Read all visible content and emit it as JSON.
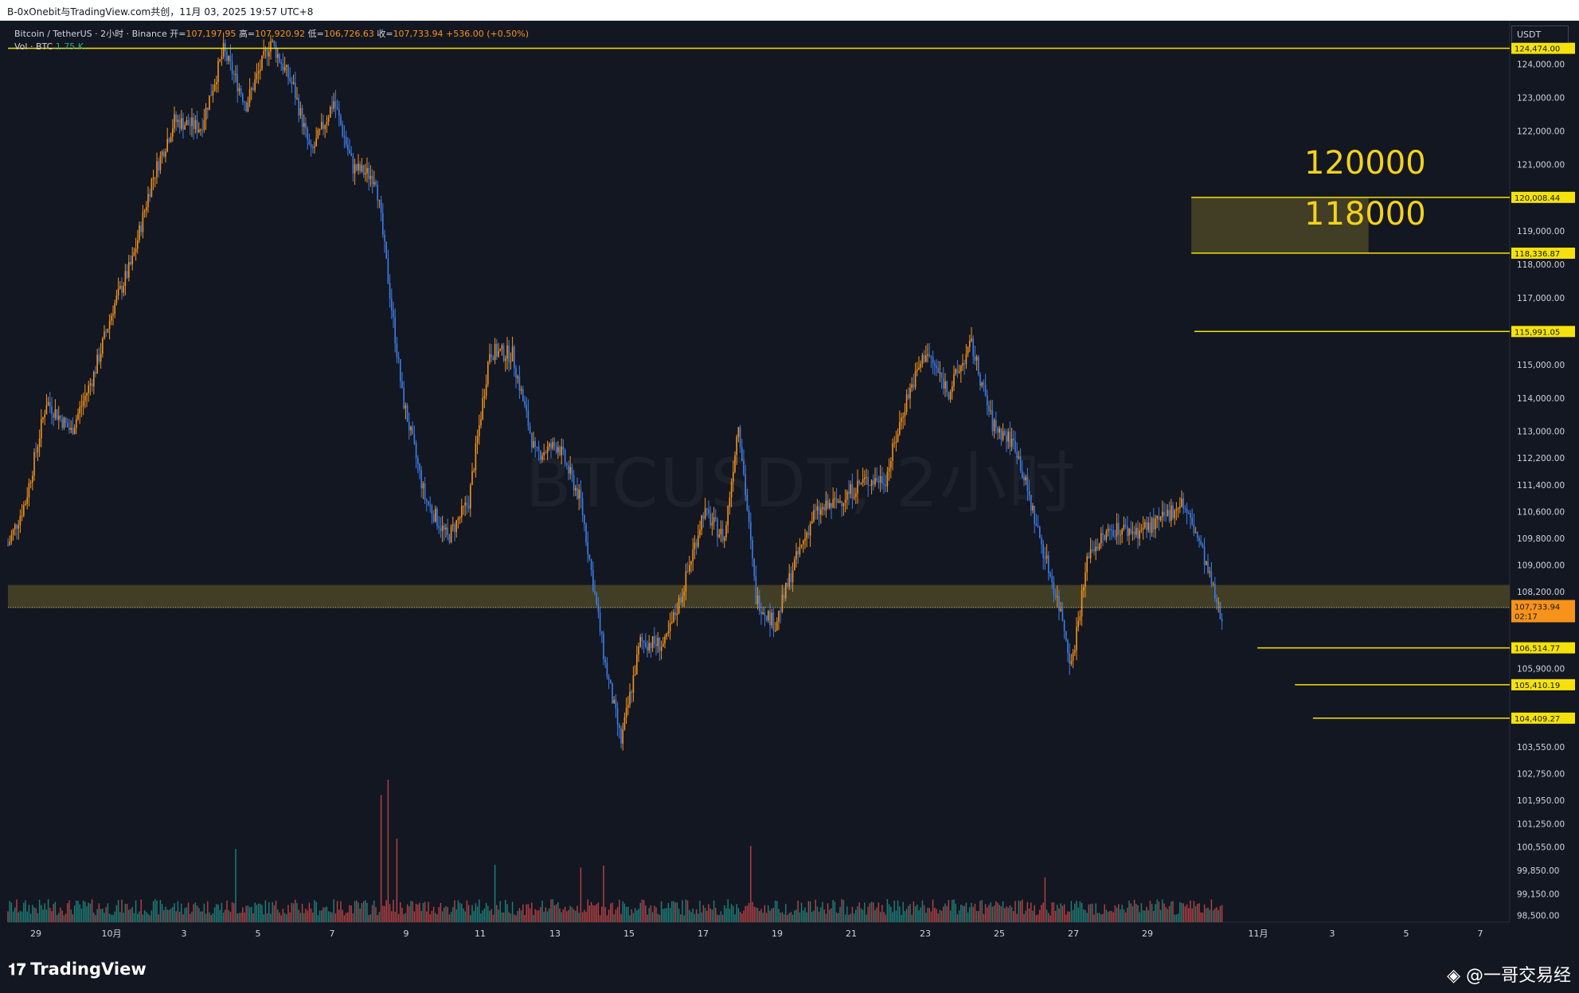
{
  "header": {
    "title_line": "B-0xOnebit与TradingView.com共创，11月 03, 2025 19:57 UTC+8"
  },
  "legend": {
    "symbol": "Bitcoin / TetherUS · 2小时 · Binance",
    "open_label": "开=",
    "open_value": "107,197.95",
    "high_label": "高=",
    "high_value": "107,920.92",
    "low_label": "低=",
    "low_value": "106,726.63",
    "close_label": "收=",
    "close_value": "107,733.94",
    "change": "+536.00 (+0.50%)",
    "vol_label": "Vol · BTC",
    "vol_value": "1.75 K"
  },
  "watermark": "BTCUSDT, 2小时",
  "currency": "USDT",
  "annotations": {
    "label_120000": "120000",
    "label_118000": "118000"
  },
  "footer": {
    "logo_text": "TradingView",
    "attribution": "@一哥交易经"
  },
  "colors": {
    "background": "#131722",
    "up": "#f7931a",
    "down": "#3d7ee6",
    "level_line": "#f5e20a",
    "zone_fill": "#4a4526",
    "vol_up": "#26a69a",
    "vol_down": "#ef5350"
  },
  "chart_data": {
    "type": "candlestick",
    "ylim": [
      98300,
      125300
    ],
    "x_tick_labels": [
      "29",
      "10月",
      "3",
      "5",
      "7",
      "9",
      "11",
      "13",
      "15",
      "17",
      "19",
      "21",
      "23",
      "25",
      "27",
      "29",
      "11月",
      "3",
      "5",
      "7"
    ],
    "y_tick_labels": [
      "124,000.00",
      "123,000.00",
      "122,000.00",
      "121,000.00",
      "119,000.00",
      "118,000.00",
      "117,000.00",
      "115,000.00",
      "114,000.00",
      "113,000.00",
      "112,200.00",
      "111,400.00",
      "110,600.00",
      "109,800.00",
      "109,000.00",
      "108,200.00",
      "105,900.00",
      "103,550.00",
      "102,750.00",
      "101,950.00",
      "101,250.00",
      "100,550.00",
      "99,850.00",
      "99,150.00",
      "98,500.00"
    ],
    "y_tick_values": [
      124000,
      123000,
      122000,
      121000,
      119000,
      118000,
      117000,
      115000,
      114000,
      113000,
      112200,
      111400,
      110600,
      109800,
      109000,
      108200,
      105900,
      103550,
      102750,
      101950,
      101250,
      100550,
      99850,
      99150,
      98500
    ],
    "levels": [
      {
        "price": 124474.0,
        "label": "124,474.00",
        "from_frac": 0.0
      },
      {
        "price": 120008.44,
        "label": "120,008.44",
        "from_frac": 0.788
      },
      {
        "price": 118336.87,
        "label": "118,336.87",
        "from_frac": 0.788
      },
      {
        "price": 115991.05,
        "label": "115,991.05",
        "from_frac": 0.79
      },
      {
        "price": 106514.77,
        "label": "106,514.77",
        "from_frac": 0.832
      },
      {
        "price": 105410.19,
        "label": "105,410.19",
        "from_frac": 0.857
      },
      {
        "price": 104409.27,
        "label": "104,409.27",
        "from_frac": 0.869
      }
    ],
    "zones": [
      {
        "from_price": 118336.87,
        "to_price": 120008.44,
        "x_start_frac": 0.788,
        "x_end_frac": 0.906
      },
      {
        "from_price": 107700,
        "to_price": 108400,
        "x_start_frac": 0.0,
        "x_end_frac": 1.0
      }
    ],
    "last_price": {
      "price": 107733.94,
      "label": "107,733.94",
      "countdown": "02:17"
    },
    "price_path": [
      [
        0,
        109600
      ],
      [
        10,
        110900
      ],
      [
        22,
        113900
      ],
      [
        36,
        113000
      ],
      [
        49,
        114700
      ],
      [
        60,
        116700
      ],
      [
        71,
        118100
      ],
      [
        82,
        120500
      ],
      [
        95,
        122300
      ],
      [
        110,
        122100
      ],
      [
        123,
        124400
      ],
      [
        136,
        122800
      ],
      [
        150,
        124700
      ],
      [
        163,
        123300
      ],
      [
        173,
        121300
      ],
      [
        186,
        122900
      ],
      [
        197,
        120900
      ],
      [
        210,
        120600
      ],
      [
        225,
        114100
      ],
      [
        238,
        111000
      ],
      [
        251,
        109800
      ],
      [
        263,
        110900
      ],
      [
        275,
        115400
      ],
      [
        288,
        115300
      ],
      [
        301,
        112300
      ],
      [
        314,
        112600
      ],
      [
        327,
        110900
      ],
      [
        341,
        106000
      ],
      [
        350,
        103700
      ],
      [
        361,
        106700
      ],
      [
        375,
        106600
      ],
      [
        385,
        108200
      ],
      [
        397,
        110600
      ],
      [
        409,
        109800
      ],
      [
        417,
        113300
      ],
      [
        427,
        108000
      ],
      [
        438,
        107200
      ],
      [
        448,
        108900
      ],
      [
        460,
        110500
      ],
      [
        474,
        110900
      ],
      [
        488,
        111500
      ],
      [
        501,
        111600
      ],
      [
        513,
        114000
      ],
      [
        524,
        115400
      ],
      [
        537,
        114200
      ],
      [
        550,
        115600
      ],
      [
        562,
        113200
      ],
      [
        575,
        112600
      ],
      [
        588,
        110000
      ],
      [
        602,
        107400
      ],
      [
        607,
        106000
      ],
      [
        617,
        109400
      ],
      [
        631,
        110100
      ],
      [
        644,
        110000
      ],
      [
        658,
        110300
      ],
      [
        670,
        110900
      ],
      [
        680,
        109700
      ],
      [
        693,
        107300
      ]
    ],
    "volume_spikes": [
      [
        213,
        0.78
      ],
      [
        217,
        1.0
      ],
      [
        222,
        0.5
      ],
      [
        130,
        0.42
      ],
      [
        340,
        0.35
      ],
      [
        327,
        0.32
      ],
      [
        424,
        0.42
      ],
      [
        278,
        0.35
      ],
      [
        592,
        0.25
      ]
    ]
  }
}
